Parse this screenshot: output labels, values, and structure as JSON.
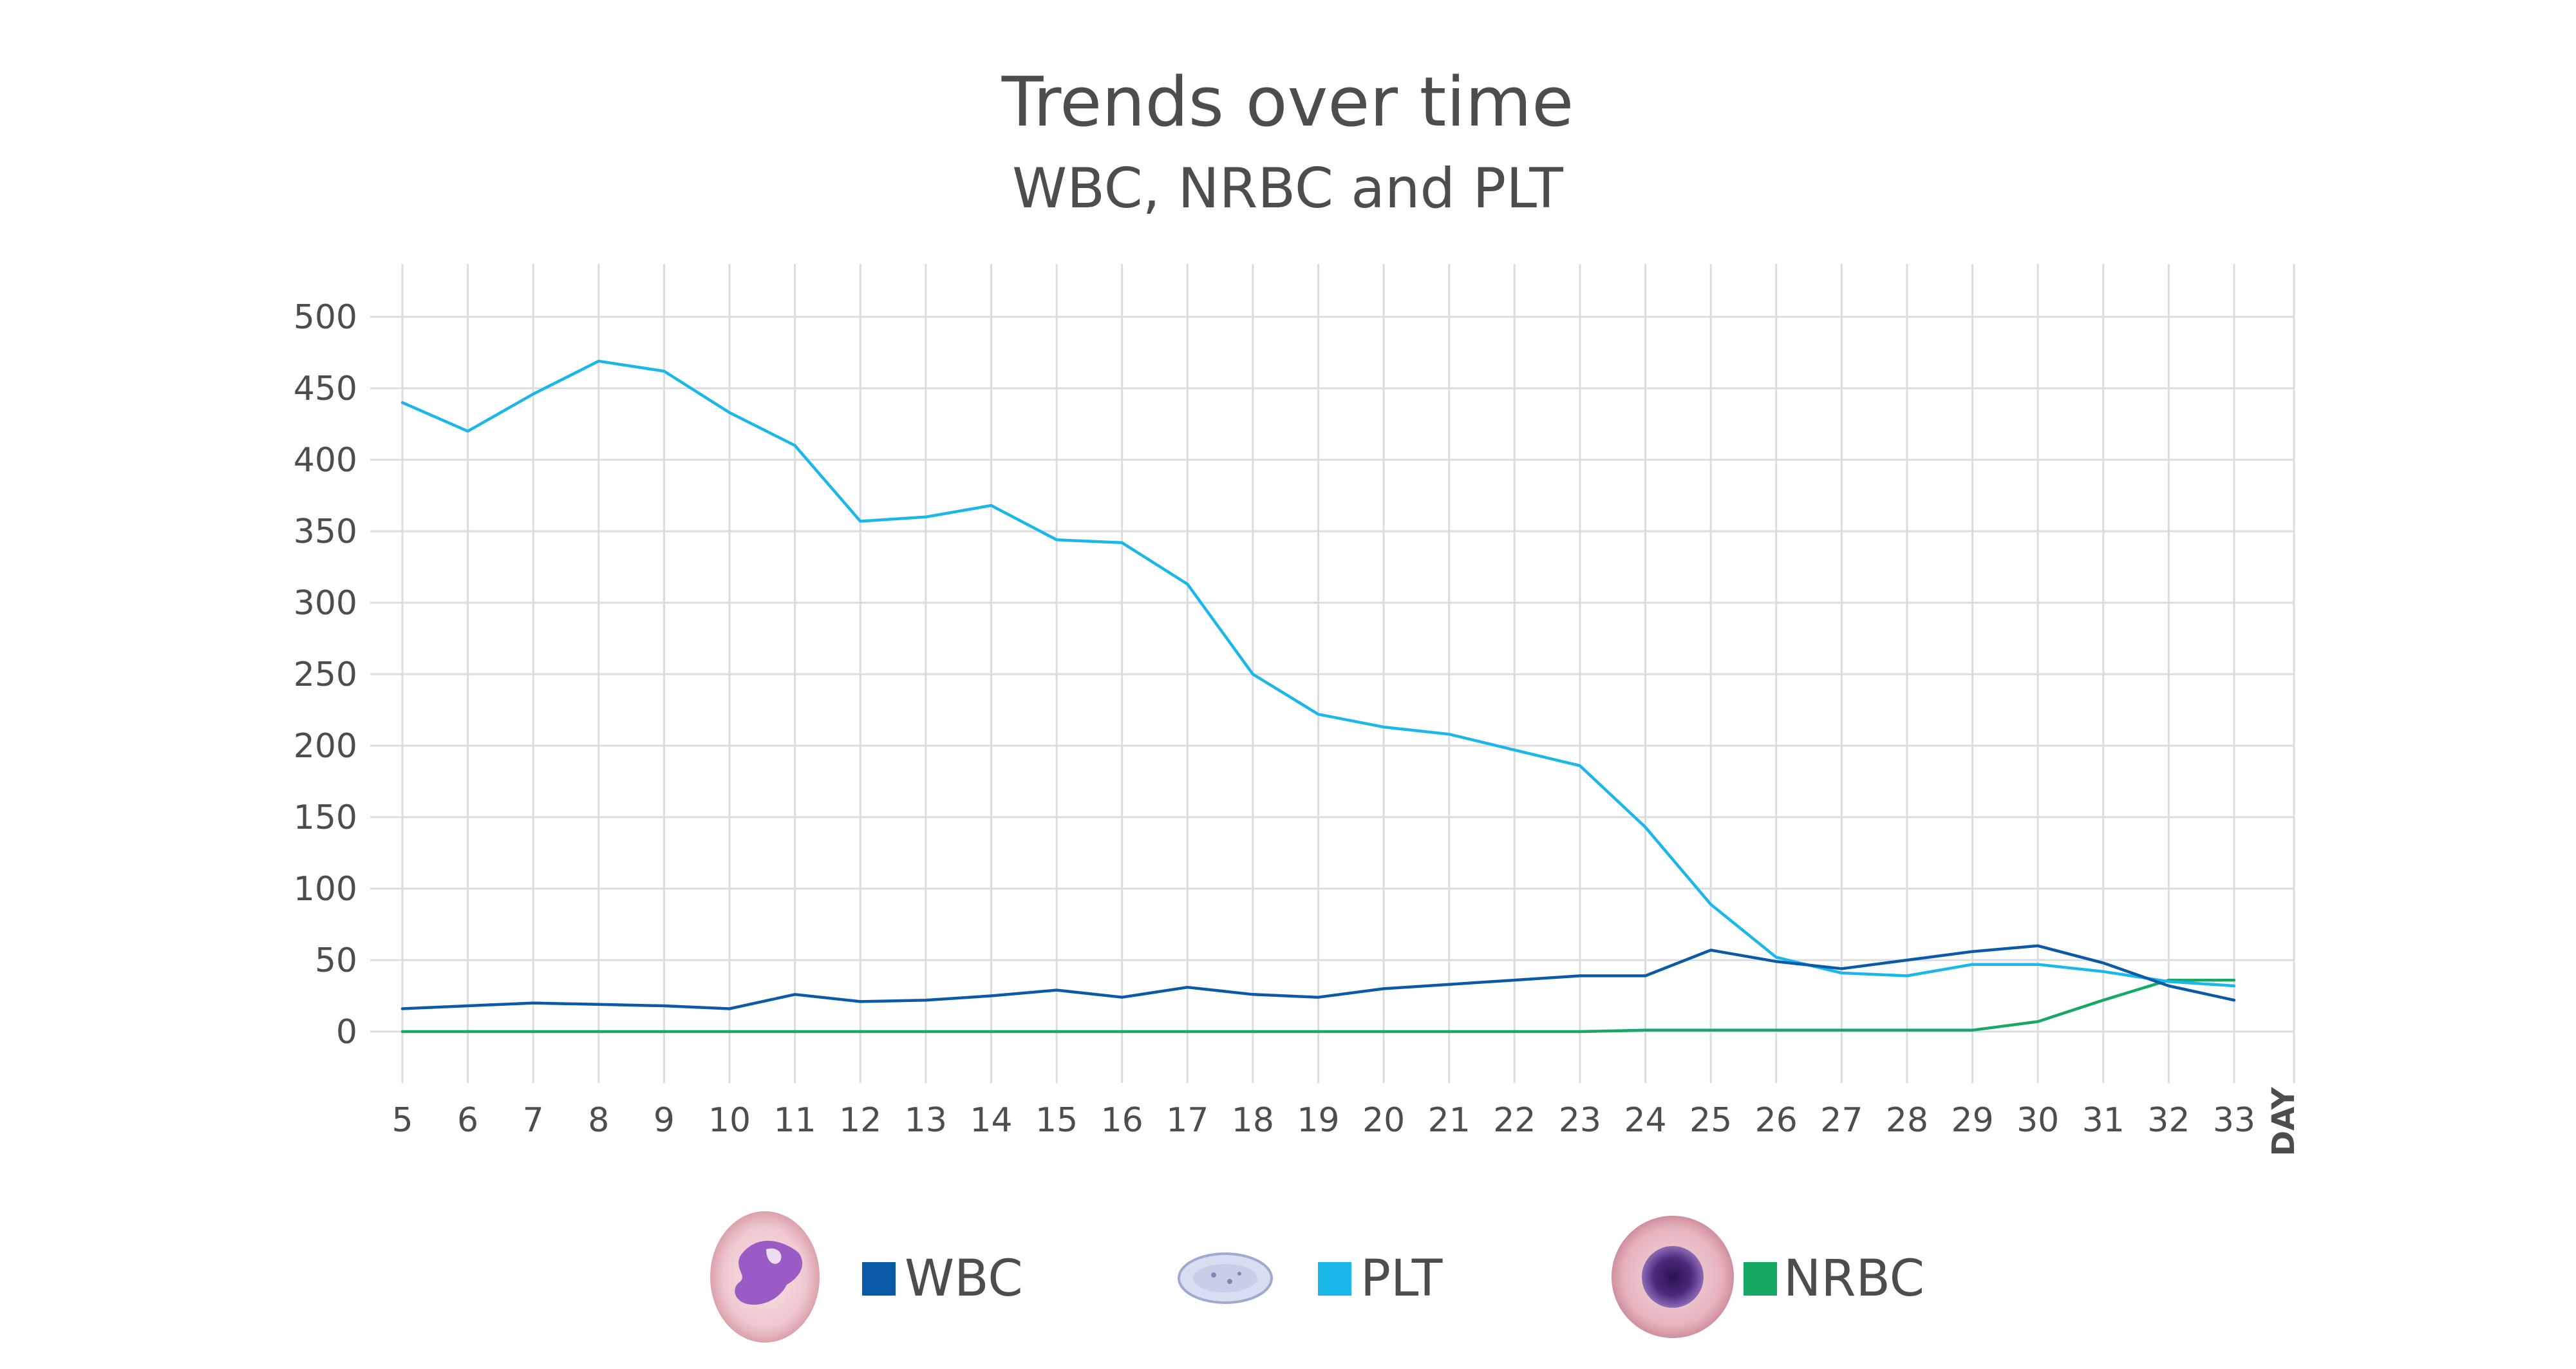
{
  "chart_data": {
    "type": "line",
    "title": "Trends over time",
    "subtitle": "WBC, NRBC and PLT",
    "xlabel": "DAY",
    "ylabel": "",
    "x": [
      5,
      6,
      7,
      8,
      9,
      10,
      11,
      12,
      13,
      14,
      15,
      16,
      17,
      18,
      19,
      20,
      21,
      22,
      23,
      24,
      25,
      26,
      27,
      28,
      29,
      30,
      31,
      32,
      33
    ],
    "yticks": [
      0,
      50,
      100,
      150,
      200,
      250,
      300,
      350,
      400,
      450,
      500
    ],
    "ylim": [
      0,
      500
    ],
    "xlim": [
      5,
      33
    ],
    "grid": true,
    "legend_position": "bottom",
    "series": [
      {
        "name": "WBC",
        "color": "#0a5aa8",
        "values": [
          16,
          18,
          20,
          19,
          18,
          16,
          26,
          21,
          22,
          25,
          29,
          24,
          31,
          26,
          24,
          30,
          33,
          36,
          39,
          39,
          57,
          49,
          44,
          50,
          56,
          60,
          48,
          32,
          22
        ]
      },
      {
        "name": "PLT",
        "color": "#1ab7ea",
        "values": [
          440,
          420,
          446,
          469,
          462,
          433,
          410,
          357,
          360,
          368,
          344,
          342,
          313,
          250,
          222,
          213,
          208,
          197,
          186,
          143,
          89,
          52,
          41,
          39,
          47,
          47,
          42,
          35,
          32
        ]
      },
      {
        "name": "NRBC",
        "color": "#16a865",
        "values": [
          0,
          0,
          0,
          0,
          0,
          0,
          0,
          0,
          0,
          0,
          0,
          0,
          0,
          0,
          0,
          0,
          0,
          0,
          0,
          1,
          1,
          1,
          1,
          1,
          1,
          7,
          22,
          36,
          36
        ]
      }
    ]
  },
  "legend": {
    "items": [
      {
        "label": "WBC",
        "color": "#0a5aa8",
        "icon": "neutrophil-cell-icon"
      },
      {
        "label": "PLT",
        "color": "#1ab7ea",
        "icon": "platelet-cell-icon"
      },
      {
        "label": "NRBC",
        "color": "#16a865",
        "icon": "nucleated-red-cell-icon"
      }
    ]
  },
  "colors": {
    "grid": "#dcdcde",
    "text": "#4d4d4f"
  }
}
